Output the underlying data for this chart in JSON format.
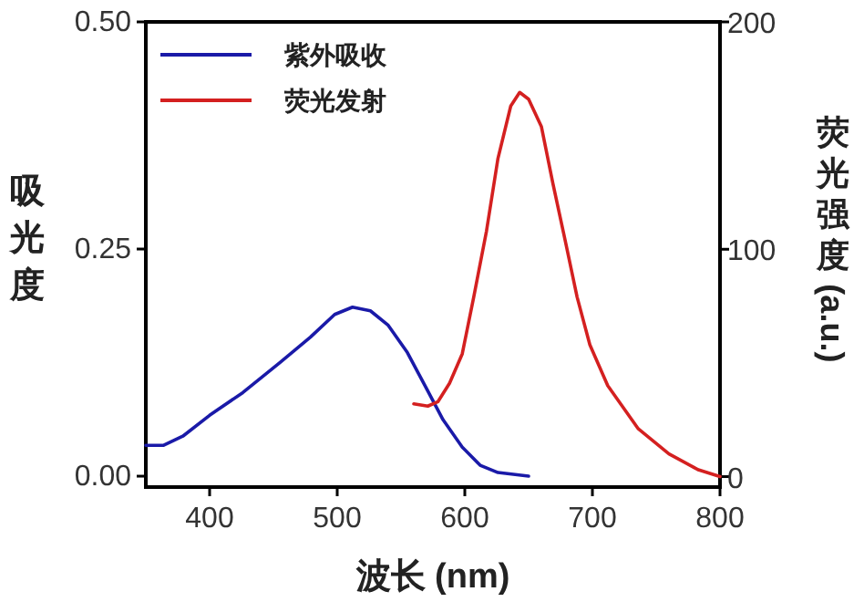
{
  "chart_data": {
    "type": "line",
    "xlabel": "波长 (nm)",
    "ylabel": "吸光度",
    "y2label": "荧光强度 (a.u.)",
    "xlim": [
      350,
      800
    ],
    "xticks": [
      400,
      500,
      600,
      700,
      800
    ],
    "ylim": [
      -0.012,
      0.5
    ],
    "yticks": [
      {
        "value": 0,
        "label": "0.00"
      },
      {
        "value": 0.25,
        "label": "0.25"
      },
      {
        "value": 0.5,
        "label": "0.50"
      }
    ],
    "y2lim": [
      -4.6,
      200
    ],
    "y2ticks": [
      0,
      100,
      200
    ],
    "legend": "top left",
    "grid": false,
    "series": [
      {
        "name": "紫外吸收",
        "color": "#1a1aa8",
        "x": [
          350,
          364,
          379,
          400,
          426,
          455,
          479,
          498,
          512,
          526,
          540,
          555,
          569,
          583,
          598,
          612,
          626,
          650
        ],
        "values": [
          0.034,
          0.034,
          0.044,
          0.067,
          0.092,
          0.125,
          0.153,
          0.178,
          0.186,
          0.182,
          0.166,
          0.136,
          0.099,
          0.062,
          0.032,
          0.012,
          0.004,
          0
        ]
      },
      {
        "name": "荧光发射",
        "color": "#d42020",
        "axis": "y2",
        "x": [
          560,
          571,
          579,
          588,
          598,
          607,
          617,
          626,
          636,
          643,
          650,
          660,
          669,
          679,
          688,
          698,
          712,
          736,
          760,
          783,
          800
        ],
        "values": [
          32,
          31,
          33,
          41,
          54,
          79,
          108,
          140,
          163,
          169,
          166,
          154,
          129,
          103,
          79,
          58,
          40,
          21,
          10,
          3,
          0
        ]
      }
    ]
  }
}
